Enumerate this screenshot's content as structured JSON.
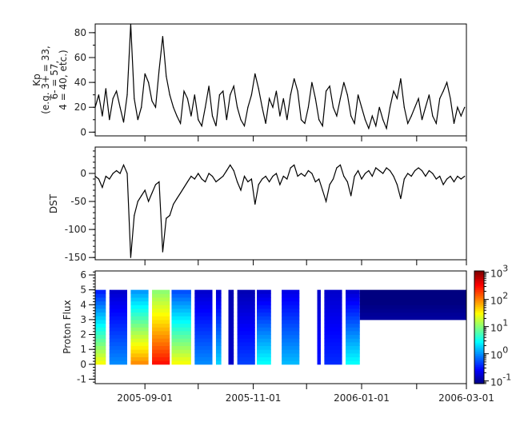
{
  "chart_data": [
    {
      "type": "line",
      "ylabel_lines": [
        "Kp",
        "(e.g. 3+ = 33,",
        "6- = 57,",
        "4 = 40, etc.)"
      ],
      "ylim": [
        -3,
        87
      ],
      "yticks": [
        0,
        20,
        40,
        60,
        80
      ],
      "xlim": [
        "2005-08-04",
        "2006-03-01"
      ],
      "grid": false,
      "x": [
        "2005-08-04",
        "2005-08-06",
        "2005-08-08",
        "2005-08-10",
        "2005-08-12",
        "2005-08-14",
        "2005-08-16",
        "2005-08-18",
        "2005-08-20",
        "2005-08-22",
        "2005-08-24",
        "2005-08-26",
        "2005-08-28",
        "2005-08-30",
        "2005-09-01",
        "2005-09-03",
        "2005-09-05",
        "2005-09-07",
        "2005-09-09",
        "2005-09-11",
        "2005-09-13",
        "2005-09-15",
        "2005-09-17",
        "2005-09-19",
        "2005-09-21",
        "2005-09-23",
        "2005-09-25",
        "2005-09-27",
        "2005-09-29",
        "2005-10-01",
        "2005-10-03",
        "2005-10-05",
        "2005-10-07",
        "2005-10-09",
        "2005-10-11",
        "2005-10-13",
        "2005-10-15",
        "2005-10-17",
        "2005-10-19",
        "2005-10-21",
        "2005-10-23",
        "2005-10-25",
        "2005-10-27",
        "2005-10-29",
        "2005-10-31",
        "2005-11-02",
        "2005-11-04",
        "2005-11-06",
        "2005-11-08",
        "2005-11-10",
        "2005-11-12",
        "2005-11-14",
        "2005-11-16",
        "2005-11-18",
        "2005-11-20",
        "2005-11-22",
        "2005-11-24",
        "2005-11-26",
        "2005-11-28",
        "2005-11-30",
        "2005-12-02",
        "2005-12-04",
        "2005-12-06",
        "2005-12-08",
        "2005-12-10",
        "2005-12-12",
        "2005-12-14",
        "2005-12-16",
        "2005-12-18",
        "2005-12-20",
        "2005-12-22",
        "2005-12-24",
        "2005-12-26",
        "2005-12-28",
        "2005-12-30",
        "2006-01-01",
        "2006-01-03",
        "2006-01-05",
        "2006-01-07",
        "2006-01-09",
        "2006-01-11",
        "2006-01-13",
        "2006-01-15",
        "2006-01-17",
        "2006-01-19",
        "2006-01-21",
        "2006-01-23",
        "2006-01-25",
        "2006-01-27",
        "2006-01-29",
        "2006-01-31",
        "2006-02-02",
        "2006-02-04",
        "2006-02-06",
        "2006-02-08",
        "2006-02-10",
        "2006-02-12",
        "2006-02-14",
        "2006-02-16",
        "2006-02-18",
        "2006-02-20",
        "2006-02-22",
        "2006-02-24",
        "2006-02-26",
        "2006-02-28"
      ],
      "values": [
        20,
        30,
        13,
        35,
        10,
        27,
        33,
        20,
        8,
        30,
        87,
        27,
        10,
        20,
        47,
        40,
        25,
        20,
        50,
        77,
        45,
        30,
        20,
        13,
        7,
        33,
        27,
        13,
        30,
        10,
        5,
        20,
        37,
        13,
        5,
        30,
        33,
        10,
        30,
        37,
        20,
        10,
        5,
        20,
        30,
        47,
        35,
        20,
        7,
        27,
        20,
        33,
        13,
        27,
        10,
        30,
        43,
        33,
        10,
        7,
        20,
        40,
        27,
        10,
        5,
        33,
        37,
        20,
        13,
        27,
        40,
        30,
        13,
        7,
        30,
        20,
        10,
        3,
        13,
        5,
        20,
        10,
        3,
        20,
        33,
        27,
        43,
        20,
        7,
        13,
        20,
        27,
        10,
        20,
        30,
        13,
        7,
        27,
        33,
        40,
        27,
        7,
        20,
        13,
        20
      ]
    },
    {
      "type": "line",
      "ylabel": "DST",
      "ylim": [
        -154,
        47
      ],
      "yticks": [
        0,
        -50,
        -100,
        -150
      ],
      "xlim": [
        "2005-08-04",
        "2006-03-01"
      ],
      "grid": false,
      "values": [
        -5,
        -10,
        -25,
        -5,
        -10,
        0,
        5,
        0,
        15,
        0,
        -150,
        -75,
        -50,
        -40,
        -30,
        -50,
        -35,
        -20,
        -15,
        -140,
        -80,
        -75,
        -55,
        -45,
        -35,
        -25,
        -15,
        -5,
        -10,
        0,
        -10,
        -15,
        0,
        -5,
        -15,
        -10,
        -5,
        5,
        15,
        5,
        -15,
        -30,
        -5,
        -15,
        -10,
        -55,
        -20,
        -10,
        -5,
        -15,
        -5,
        0,
        -20,
        -5,
        -10,
        10,
        15,
        -5,
        0,
        -5,
        5,
        0,
        -15,
        -10,
        -30,
        -50,
        -20,
        -10,
        10,
        15,
        -5,
        -15,
        -40,
        -5,
        5,
        -10,
        0,
        5,
        -5,
        10,
        5,
        0,
        10,
        5,
        -5,
        -20,
        -45,
        -10,
        0,
        -5,
        5,
        10,
        5,
        -5,
        5,
        0,
        -10,
        -5,
        -20,
        -10,
        -5,
        -15,
        -5,
        -10,
        -5
      ]
    },
    {
      "type": "heatmap",
      "ylabel": "Proton Flux",
      "ylim": [
        -1.3,
        6.27
      ],
      "yticks": [
        -1,
        0,
        1,
        2,
        3,
        4,
        5,
        6
      ],
      "xlim": [
        "2005-08-04",
        "2006-03-01"
      ],
      "xticks": [
        "2005-09-01",
        "2005-11-01",
        "2006-01-01",
        "2006-03-01"
      ],
      "minor_xticks": [
        "2005-10-01",
        "2005-12-01",
        "2006-02-01"
      ],
      "colorscale": "jet",
      "color_log10_range": [
        -1.1,
        3.05
      ],
      "colorbar_ticks": [
        {
          "base": "10",
          "exp": "3",
          "log10": 3
        },
        {
          "base": "10",
          "exp": "2",
          "log10": 2
        },
        {
          "base": "10",
          "exp": "1",
          "log10": 1
        },
        {
          "base": "10",
          "exp": "0",
          "log10": 0
        },
        {
          "base": "10",
          "exp": "-1",
          "log10": -1
        }
      ],
      "segments": [
        {
          "start": "2005-08-04",
          "end": "2005-08-10",
          "L_min": 0,
          "L_max": 5,
          "log10_flux_low_L": 1.5,
          "log10_flux_high_L": -0.5
        },
        {
          "start": "2005-08-12",
          "end": "2005-08-22",
          "L_min": 0,
          "L_max": 5,
          "log10_flux_low_L": 0.0,
          "log10_flux_high_L": -0.8
        },
        {
          "start": "2005-08-24",
          "end": "2005-09-03",
          "L_min": 0,
          "L_max": 5,
          "log10_flux_low_L": 2.0,
          "log10_flux_high_L": 0.0
        },
        {
          "start": "2005-09-05",
          "end": "2005-09-15",
          "L_min": 0,
          "L_max": 5,
          "log10_flux_low_L": 2.5,
          "log10_flux_high_L": 1.0
        },
        {
          "start": "2005-09-16",
          "end": "2005-09-27",
          "L_min": 0,
          "L_max": 5,
          "log10_flux_low_L": 1.5,
          "log10_flux_high_L": -0.3
        },
        {
          "start": "2005-09-29",
          "end": "2005-10-09",
          "L_min": 0,
          "L_max": 5,
          "log10_flux_low_L": 0.0,
          "log10_flux_high_L": -0.8
        },
        {
          "start": "2005-10-11",
          "end": "2005-10-14",
          "L_min": 0,
          "L_max": 5,
          "log10_flux_low_L": 0.3,
          "log10_flux_high_L": -0.8
        },
        {
          "start": "2005-10-18",
          "end": "2005-10-21",
          "L_min": 0,
          "L_max": 5,
          "log10_flux_low_L": -0.8,
          "log10_flux_high_L": -0.9
        },
        {
          "start": "2005-10-23",
          "end": "2005-11-02",
          "L_min": 0,
          "L_max": 5,
          "log10_flux_low_L": -0.3,
          "log10_flux_high_L": -0.9
        },
        {
          "start": "2005-11-03",
          "end": "2005-11-11",
          "L_min": 0,
          "L_max": 5,
          "log10_flux_low_L": 0.5,
          "log10_flux_high_L": -0.8
        },
        {
          "start": "2005-11-17",
          "end": "2005-11-27",
          "L_min": 0,
          "L_max": 5,
          "log10_flux_low_L": 0.2,
          "log10_flux_high_L": -0.7
        },
        {
          "start": "2005-12-07",
          "end": "2005-12-09",
          "L_min": 0,
          "L_max": 5,
          "log10_flux_low_L": -0.5,
          "log10_flux_high_L": -0.8
        },
        {
          "start": "2005-12-11",
          "end": "2005-12-21",
          "L_min": 0,
          "L_max": 5,
          "log10_flux_low_L": -0.4,
          "log10_flux_high_L": -0.8
        },
        {
          "start": "2005-12-23",
          "end": "2005-12-31",
          "L_min": 0,
          "L_max": 5,
          "log10_flux_low_L": 0.5,
          "log10_flux_high_L": -0.8
        },
        {
          "start": "2005-12-31",
          "end": "2006-03-01",
          "L_min": 3,
          "L_max": 5,
          "log10_flux_low_L": -0.6,
          "log10_flux_high_L": -1.2
        }
      ]
    }
  ]
}
